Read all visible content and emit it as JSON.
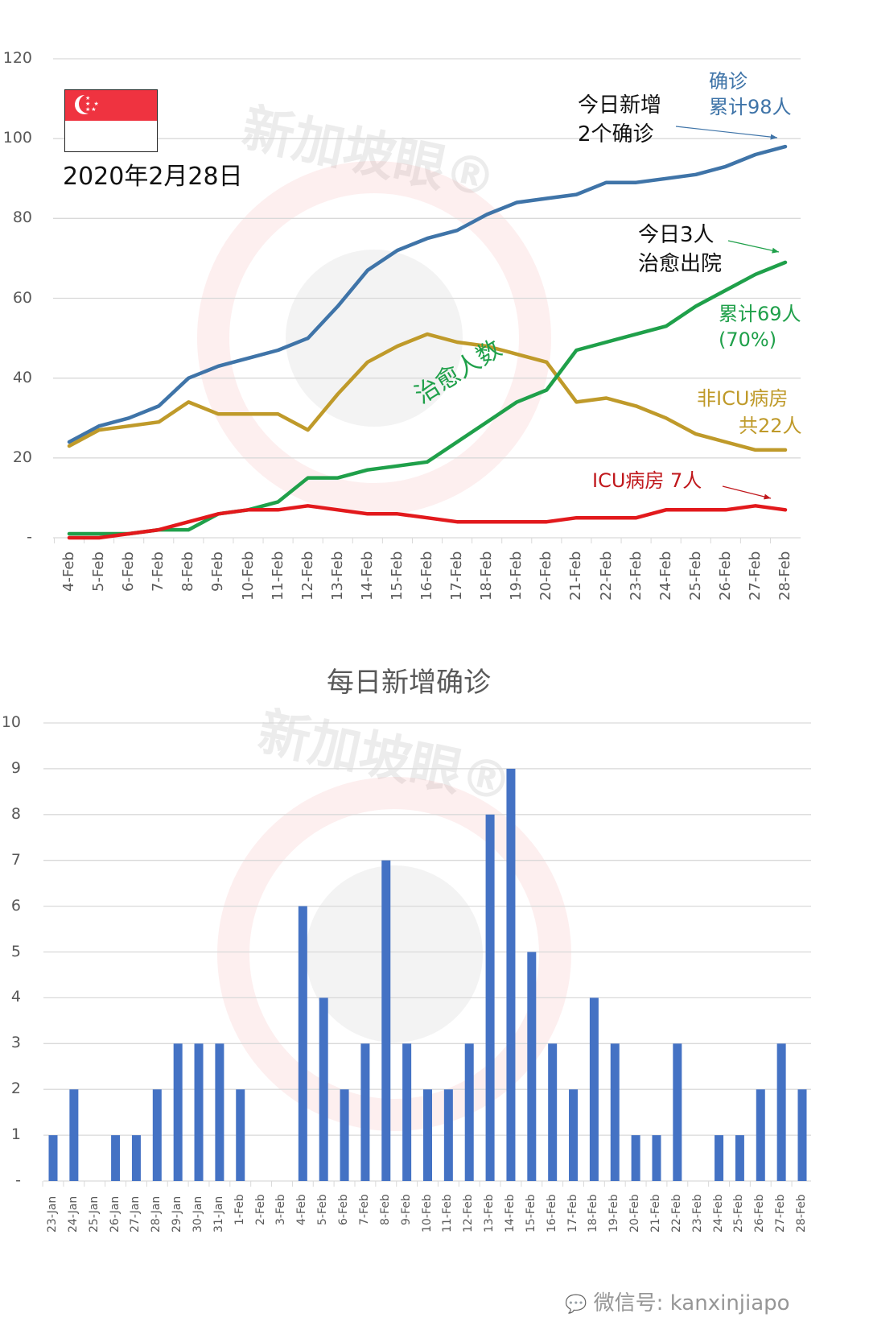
{
  "upper": {
    "date_label": "2020年2月28日",
    "flag": "singapore-flag",
    "watermark": "新加坡眼®",
    "y_ticks": [
      "120",
      "100",
      "80",
      "60",
      "40",
      "20",
      "-"
    ],
    "annotations": {
      "confirmed_title": "确诊",
      "confirmed_total": "累计98人",
      "new_today_line1": "今日新增",
      "new_today_line2": "2个确诊",
      "discharged_line1": "今日3人",
      "discharged_line2": "治愈出院",
      "recovered_total": "累计69人",
      "recovered_pct": "(70%)",
      "recovered_series_label": "治愈人数",
      "non_icu_line1": "非ICU病房",
      "non_icu_line2": "共22人",
      "icu": "ICU病房 7人"
    },
    "colors": {
      "confirmed": "#3F74A8",
      "non_icu": "#BF9A2A",
      "recovered": "#1FA04A",
      "icu": "#E2191C"
    }
  },
  "lower": {
    "title": "每日新增确诊",
    "watermark": "新加坡眼®",
    "y_ticks": [
      "10",
      "9",
      "8",
      "7",
      "6",
      "5",
      "4",
      "3",
      "2",
      "1",
      "-"
    ],
    "bar_color": "#4472C4",
    "footer": "微信号: kanxinjiapo"
  },
  "chart_data": [
    {
      "type": "line",
      "title": "2020年2月28日",
      "xlabel": "",
      "ylabel": "",
      "ylim": [
        0,
        120
      ],
      "grid": true,
      "categories": [
        "4-Feb",
        "5-Feb",
        "6-Feb",
        "7-Feb",
        "8-Feb",
        "9-Feb",
        "10-Feb",
        "11-Feb",
        "12-Feb",
        "13-Feb",
        "14-Feb",
        "15-Feb",
        "16-Feb",
        "17-Feb",
        "18-Feb",
        "19-Feb",
        "20-Feb",
        "21-Feb",
        "22-Feb",
        "23-Feb",
        "24-Feb",
        "25-Feb",
        "26-Feb",
        "27-Feb",
        "28-Feb"
      ],
      "series": [
        {
          "name": "确诊 累计",
          "values": [
            24,
            28,
            30,
            33,
            40,
            43,
            45,
            47,
            50,
            58,
            67,
            72,
            75,
            77,
            81,
            84,
            85,
            86,
            89,
            89,
            90,
            91,
            93,
            96,
            98
          ]
        },
        {
          "name": "非ICU病房",
          "values": [
            23,
            27,
            28,
            29,
            34,
            31,
            31,
            31,
            27,
            36,
            44,
            48,
            51,
            49,
            48,
            46,
            44,
            34,
            35,
            33,
            30,
            26,
            24,
            22,
            22
          ]
        },
        {
          "name": "治愈人数",
          "values": [
            1,
            1,
            1,
            2,
            2,
            6,
            7,
            9,
            15,
            15,
            17,
            18,
            19,
            24,
            29,
            34,
            37,
            47,
            49,
            51,
            53,
            58,
            62,
            66,
            69
          ]
        },
        {
          "name": "ICU病房",
          "values": [
            0,
            0,
            1,
            2,
            4,
            6,
            7,
            7,
            8,
            7,
            6,
            6,
            5,
            4,
            4,
            4,
            4,
            5,
            5,
            5,
            7,
            7,
            7,
            8,
            7
          ]
        }
      ]
    },
    {
      "type": "bar",
      "title": "每日新增确诊",
      "xlabel": "",
      "ylabel": "",
      "ylim": [
        0,
        10
      ],
      "grid": true,
      "categories": [
        "23-Jan",
        "24-Jan",
        "25-Jan",
        "26-Jan",
        "27-Jan",
        "28-Jan",
        "29-Jan",
        "30-Jan",
        "31-Jan",
        "1-Feb",
        "2-Feb",
        "3-Feb",
        "4-Feb",
        "5-Feb",
        "6-Feb",
        "7-Feb",
        "8-Feb",
        "9-Feb",
        "10-Feb",
        "11-Feb",
        "12-Feb",
        "13-Feb",
        "14-Feb",
        "15-Feb",
        "16-Feb",
        "17-Feb",
        "18-Feb",
        "19-Feb",
        "20-Feb",
        "21-Feb",
        "22-Feb",
        "23-Feb",
        "24-Feb",
        "25-Feb",
        "26-Feb",
        "27-Feb",
        "28-Feb"
      ],
      "values": [
        1,
        2,
        0,
        1,
        1,
        2,
        3,
        3,
        3,
        2,
        0,
        0,
        6,
        4,
        2,
        3,
        7,
        3,
        2,
        2,
        3,
        8,
        9,
        5,
        3,
        2,
        4,
        3,
        1,
        1,
        3,
        0,
        1,
        1,
        2,
        3,
        2
      ]
    }
  ]
}
